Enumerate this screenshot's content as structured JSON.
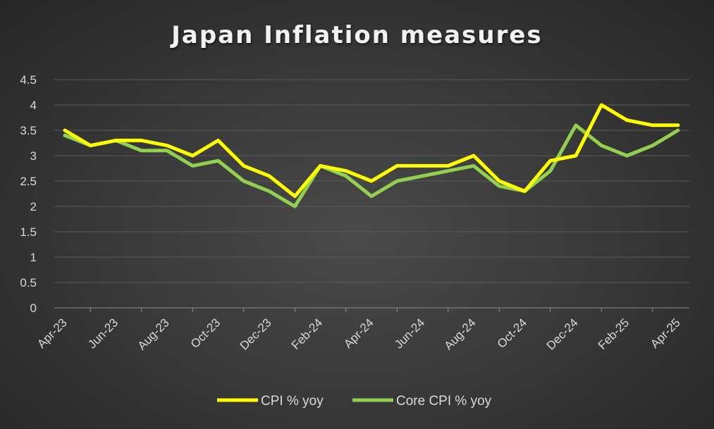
{
  "chart_data": {
    "type": "line",
    "title": "Japan Inflation measures",
    "xlabel": "",
    "ylabel": "",
    "ylim": [
      0,
      4.5
    ],
    "yticks": [
      "0",
      "0.5",
      "1",
      "1.5",
      "2",
      "2.5",
      "3",
      "3.5",
      "4",
      "4.5"
    ],
    "x": [
      "Apr-23",
      "May-23",
      "Jun-23",
      "Jul-23",
      "Aug-23",
      "Sep-23",
      "Oct-23",
      "Nov-23",
      "Dec-23",
      "Jan-24",
      "Feb-24",
      "Mar-24",
      "Apr-24",
      "May-24",
      "Jun-24",
      "Jul-24",
      "Aug-24",
      "Sep-24",
      "Oct-24",
      "Nov-24",
      "Dec-24",
      "Jan-25",
      "Feb-25",
      "Mar-25",
      "Apr-25"
    ],
    "x_tick_labels": [
      "Apr-23",
      "Jun-23",
      "Aug-23",
      "Oct-23",
      "Dec-23",
      "Feb-24",
      "Apr-24",
      "Jun-24",
      "Aug-24",
      "Oct-24",
      "Dec-24",
      "Feb-25",
      "Apr-25"
    ],
    "grid": true,
    "legend": "bottom",
    "series": [
      {
        "name": "CPI % yoy",
        "color": "#ffff00",
        "values": [
          3.5,
          3.2,
          3.3,
          3.3,
          3.2,
          3.0,
          3.3,
          2.8,
          2.6,
          2.2,
          2.8,
          2.7,
          2.5,
          2.8,
          2.8,
          2.8,
          3.0,
          2.5,
          2.3,
          2.9,
          3.0,
          4.0,
          3.7,
          3.6,
          3.6
        ]
      },
      {
        "name": "Core CPI % yoy",
        "color": "#92d050",
        "values": [
          3.4,
          3.2,
          3.3,
          3.1,
          3.1,
          2.8,
          2.9,
          2.5,
          2.3,
          2.0,
          2.8,
          2.6,
          2.2,
          2.5,
          2.6,
          2.7,
          2.8,
          2.4,
          2.3,
          2.7,
          3.6,
          3.2,
          3.0,
          3.2,
          3.5
        ]
      }
    ]
  }
}
